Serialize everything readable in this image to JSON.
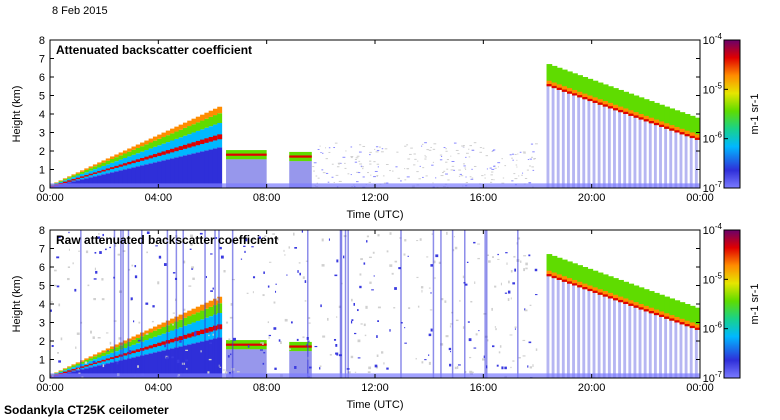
{
  "date_label": "8 Feb 2015",
  "footer_label": "Sodankyla CT25K ceilometer",
  "chart_data": [
    {
      "type": "heatmap",
      "title": "Attenuated backscatter coefficient",
      "xlabel": "Time (UTC)",
      "ylabel": "Height (km)",
      "xlim": [
        "00:00",
        "24:00"
      ],
      "ylim": [
        0,
        8
      ],
      "x_ticks": [
        "00:00",
        "04:00",
        "08:00",
        "12:00",
        "16:00",
        "20:00",
        "00:00"
      ],
      "y_ticks": [
        "0",
        "1",
        "2",
        "3",
        "4",
        "5",
        "6",
        "7",
        "8"
      ],
      "colorbar": {
        "scale": "log",
        "range": [
          1e-07,
          0.0001
        ],
        "ticks": [
          "10^-7",
          "10^-6",
          "10^-5",
          "10^-4"
        ],
        "unit": "m^-1 sr^-1",
        "colormap": [
          "#7b7bff",
          "#2f2fd9",
          "#00b8ff",
          "#19d28a",
          "#5fdc00",
          "#e6e600",
          "#ff8c00",
          "#e00000",
          "#6a006a"
        ]
      },
      "features": [
        {
          "kind": "rising-aerosol-layer",
          "time_start": "00:00",
          "time_end": "06:20",
          "height_start_km": 0.2,
          "height_end_km": 4.5
        },
        {
          "kind": "thin-cloud-layer",
          "time_start": "06:30",
          "time_end": "08:00",
          "height_km": 1.8
        },
        {
          "kind": "cloud-layer",
          "time_start": "08:50",
          "time_end": "09:40",
          "height_km": 1.7
        },
        {
          "kind": "clear-sky-noise",
          "time_start": "09:40",
          "time_end": "18:00",
          "height_km_max": 2.5
        },
        {
          "kind": "elevated-cloud",
          "time_start": "18:20",
          "time_end": "24:00",
          "height_start_km": 5.5,
          "height_end_km": 2.5
        }
      ]
    },
    {
      "type": "heatmap",
      "title": "Raw attenuated backscatter coefficient",
      "xlabel": "Time (UTC)",
      "ylabel": "Height (km)",
      "xlim": [
        "00:00",
        "24:00"
      ],
      "ylim": [
        0,
        8
      ],
      "x_ticks": [
        "00:00",
        "04:00",
        "08:00",
        "12:00",
        "16:00",
        "20:00",
        "00:00"
      ],
      "y_ticks": [
        "0",
        "1",
        "2",
        "3",
        "4",
        "5",
        "6",
        "7",
        "8"
      ],
      "colorbar": {
        "scale": "log",
        "range": [
          1e-07,
          0.0001
        ],
        "ticks": [
          "10^-7",
          "10^-6",
          "10^-5",
          "10^-4"
        ],
        "unit": "m^-1 sr^-1",
        "colormap": [
          "#7b7bff",
          "#2f2fd9",
          "#00b8ff",
          "#19d28a",
          "#5fdc00",
          "#e6e600",
          "#ff8c00",
          "#e00000",
          "#6a006a"
        ]
      },
      "features": [
        {
          "kind": "rising-aerosol-layer",
          "time_start": "00:00",
          "time_end": "06:20",
          "height_start_km": 0.2,
          "height_end_km": 4.5
        },
        {
          "kind": "thin-cloud-layer",
          "time_start": "06:30",
          "time_end": "08:00",
          "height_km": 1.8
        },
        {
          "kind": "cloud-layer",
          "time_start": "08:50",
          "time_end": "09:40",
          "height_km": 1.7
        },
        {
          "kind": "noise-full-column",
          "time_start": "00:00",
          "time_end": "18:00",
          "height_km_max": 8
        },
        {
          "kind": "elevated-cloud",
          "time_start": "18:20",
          "time_end": "24:00",
          "height_start_km": 5.5,
          "height_end_km": 2.5
        }
      ]
    }
  ]
}
